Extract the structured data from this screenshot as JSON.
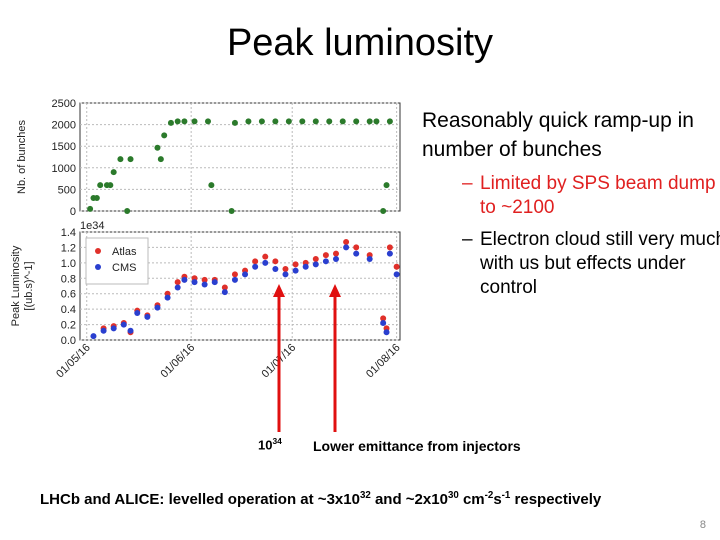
{
  "title": "Peak luminosity",
  "bullets": {
    "main": "Reasonably quick ramp-up in number of bunches",
    "sub": [
      {
        "text": "Limited by SPS beam dump to ~2100",
        "color": "#e02020"
      },
      {
        "text": "Electron cloud still very much with us but effects under control",
        "color": "#000000"
      }
    ]
  },
  "annotations": {
    "left": {
      "base": "10",
      "exponent": "34"
    },
    "right": "Lower emittance from injectors"
  },
  "footnote": {
    "parts": [
      "LHCb and ALICE: levelled operation at ~3x10",
      "32",
      " and ~2x10",
      "30",
      " cm",
      "-2",
      "s",
      "-1",
      " respectively"
    ]
  },
  "page_number": "8",
  "chart_data": [
    {
      "type": "scatter",
      "ylabel": "Nb. of bunches",
      "grid": true,
      "xlim": [
        "2016-04-29",
        "2016-08-02"
      ],
      "xticks": [
        "2016-05-01",
        "2016-06-01",
        "2016-07-01",
        "2016-08-01"
      ],
      "ylim": [
        0,
        2500
      ],
      "yticks": [
        0,
        500,
        1000,
        1500,
        2000,
        2500
      ],
      "x": [
        "2016-05-02",
        "2016-05-03",
        "2016-05-04",
        "2016-05-05",
        "2016-05-07",
        "2016-05-08",
        "2016-05-09",
        "2016-05-11",
        "2016-05-13",
        "2016-05-14",
        "2016-05-22",
        "2016-05-23",
        "2016-05-24",
        "2016-05-26",
        "2016-05-28",
        "2016-05-30",
        "2016-06-02",
        "2016-06-06",
        "2016-06-07",
        "2016-06-13",
        "2016-06-14",
        "2016-06-18",
        "2016-06-22",
        "2016-06-26",
        "2016-06-30",
        "2016-07-04",
        "2016-07-08",
        "2016-07-12",
        "2016-07-16",
        "2016-07-20",
        "2016-07-24",
        "2016-07-26",
        "2016-07-28",
        "2016-07-29",
        "2016-07-30"
      ],
      "series": [
        {
          "name": "Nb. of bunches",
          "color": "#2b7a2b",
          "values": [
            50,
            300,
            300,
            600,
            600,
            600,
            900,
            1200,
            0,
            1200,
            1465,
            1200,
            1750,
            2040,
            2076,
            2076,
            2076,
            2076,
            600,
            0,
            2040,
            2076,
            2076,
            2076,
            2076,
            2076,
            2076,
            2076,
            2076,
            2076,
            2076,
            2076,
            0,
            600,
            2076
          ]
        }
      ]
    },
    {
      "type": "scatter",
      "ylabel": [
        "Peak Luminosity",
        "[(ub.s)^-1]"
      ],
      "offset_label": "1e34",
      "grid": true,
      "legend": "upper left",
      "xlim": [
        "2016-04-29",
        "2016-08-02"
      ],
      "xticks": [
        {
          "value": "2016-05-01",
          "label": "01/05/16"
        },
        {
          "value": "2016-06-01",
          "label": "01/06/16"
        },
        {
          "value": "2016-07-01",
          "label": "01/07/16"
        },
        {
          "value": "2016-08-01",
          "label": "01/08/16"
        }
      ],
      "ylim": [
        0,
        1.4
      ],
      "yticks": [
        {
          "value": 0,
          "label": "0.0"
        },
        {
          "value": 0.2,
          "label": "0.2"
        },
        {
          "value": 0.4,
          "label": "0.4"
        },
        {
          "value": 0.6,
          "label": "0.6"
        },
        {
          "value": 0.8,
          "label": "0.8"
        },
        {
          "value": 1,
          "label": "1.0"
        },
        {
          "value": 1.2,
          "label": "1.2"
        },
        {
          "value": 1.4,
          "label": "1.4"
        }
      ],
      "x": [
        "2016-05-03",
        "2016-05-06",
        "2016-05-09",
        "2016-05-12",
        "2016-05-14",
        "2016-05-16",
        "2016-05-19",
        "2016-05-22",
        "2016-05-25",
        "2016-05-28",
        "2016-05-30",
        "2016-06-02",
        "2016-06-05",
        "2016-06-08",
        "2016-06-11",
        "2016-06-14",
        "2016-06-17",
        "2016-06-20",
        "2016-06-23",
        "2016-06-26",
        "2016-06-29",
        "2016-07-02",
        "2016-07-05",
        "2016-07-08",
        "2016-07-11",
        "2016-07-14",
        "2016-07-17",
        "2016-07-20",
        "2016-07-24",
        "2016-07-28",
        "2016-07-29",
        "2016-07-30",
        "2016-08-01"
      ],
      "series": [
        {
          "name": "Atlas",
          "color": "#e0302a",
          "values": [
            null,
            0.15,
            0.18,
            0.22,
            0.1,
            0.38,
            0.32,
            0.45,
            0.6,
            0.75,
            0.82,
            0.8,
            0.78,
            0.78,
            0.68,
            0.85,
            0.9,
            1.02,
            1.08,
            1.02,
            0.92,
            0.98,
            1.0,
            1.05,
            1.1,
            1.12,
            1.27,
            1.2,
            1.1,
            0.28,
            0.15,
            1.2,
            0.95
          ]
        },
        {
          "name": "CMS",
          "color": "#2a3fcf",
          "values": [
            0.05,
            0.12,
            0.15,
            0.2,
            0.12,
            0.35,
            0.3,
            0.42,
            0.55,
            0.68,
            0.78,
            0.75,
            0.72,
            0.75,
            0.62,
            0.78,
            0.85,
            0.95,
            1.0,
            0.92,
            0.85,
            0.9,
            0.95,
            0.98,
            1.02,
            1.05,
            1.2,
            1.12,
            1.05,
            0.22,
            0.1,
            1.12,
            0.85
          ]
        }
      ]
    }
  ]
}
